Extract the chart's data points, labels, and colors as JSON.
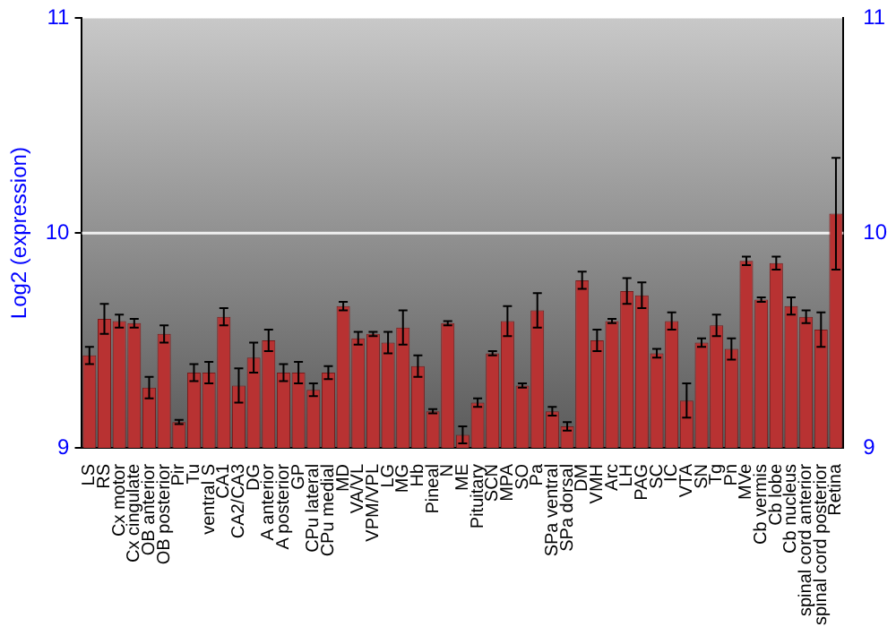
{
  "chart_data": {
    "type": "bar",
    "ylabel": "Log2 (expression)",
    "categories": [
      "LS",
      "RS",
      "Cx motor",
      "Cx cingulate",
      "OB anterior",
      "OB posterior",
      "Pir",
      "Tu",
      "ventral S",
      "CA1",
      "CA2/CA3",
      "DG",
      "A anterior",
      "A posterior",
      "GP",
      "CPu lateral",
      "CPu medial",
      "MD",
      "VA/VL",
      "VPM/VPL",
      "LG",
      "MG",
      "Hb",
      "Pineal",
      "N",
      "ME",
      "Pituitary",
      "SCN",
      "MPA",
      "SO",
      "Pa",
      "SPa ventral",
      "SPa dorsal",
      "DM",
      "VMH",
      "Arc",
      "LH",
      "PAG",
      "SC",
      "IC",
      "VTA",
      "SN",
      "Tg",
      "Pn",
      "MVe",
      "Cb vermis",
      "Cb lobe",
      "Cb nucleus",
      "spinal cord anterior",
      "spinal cord posterior",
      "Retina"
    ],
    "values": [
      9.43,
      9.6,
      9.59,
      9.58,
      9.28,
      9.53,
      9.12,
      9.35,
      9.35,
      9.61,
      9.29,
      9.42,
      9.5,
      9.35,
      9.35,
      9.27,
      9.35,
      9.66,
      9.51,
      9.53,
      9.49,
      9.56,
      9.38,
      9.17,
      9.58,
      9.06,
      9.21,
      9.44,
      9.59,
      9.29,
      9.64,
      9.17,
      9.1,
      9.78,
      9.5,
      9.59,
      9.73,
      9.71,
      9.44,
      9.59,
      9.22,
      9.49,
      9.57,
      9.46,
      9.87,
      9.69,
      9.86,
      9.66,
      9.61,
      9.55,
      10.09
    ],
    "errors": [
      0.04,
      0.07,
      0.03,
      0.02,
      0.05,
      0.04,
      0.01,
      0.04,
      0.05,
      0.04,
      0.08,
      0.07,
      0.05,
      0.04,
      0.05,
      0.03,
      0.03,
      0.02,
      0.03,
      0.01,
      0.05,
      0.08,
      0.05,
      0.01,
      0.01,
      0.04,
      0.02,
      0.01,
      0.07,
      0.01,
      0.08,
      0.02,
      0.02,
      0.04,
      0.05,
      0.01,
      0.06,
      0.06,
      0.02,
      0.04,
      0.08,
      0.02,
      0.05,
      0.05,
      0.02,
      0.01,
      0.03,
      0.04,
      0.03,
      0.08,
      0.26
    ],
    "color": "#b83232",
    "ylim": [
      9,
      11
    ],
    "yticks": [
      9,
      10,
      11
    ],
    "y2lim": [
      9,
      11
    ],
    "y2ticks": [
      9,
      10,
      11
    ],
    "ref_lines": [
      {
        "axis": "y",
        "value": 10,
        "color": "#f0f0f0"
      }
    ],
    "legend": false
  }
}
